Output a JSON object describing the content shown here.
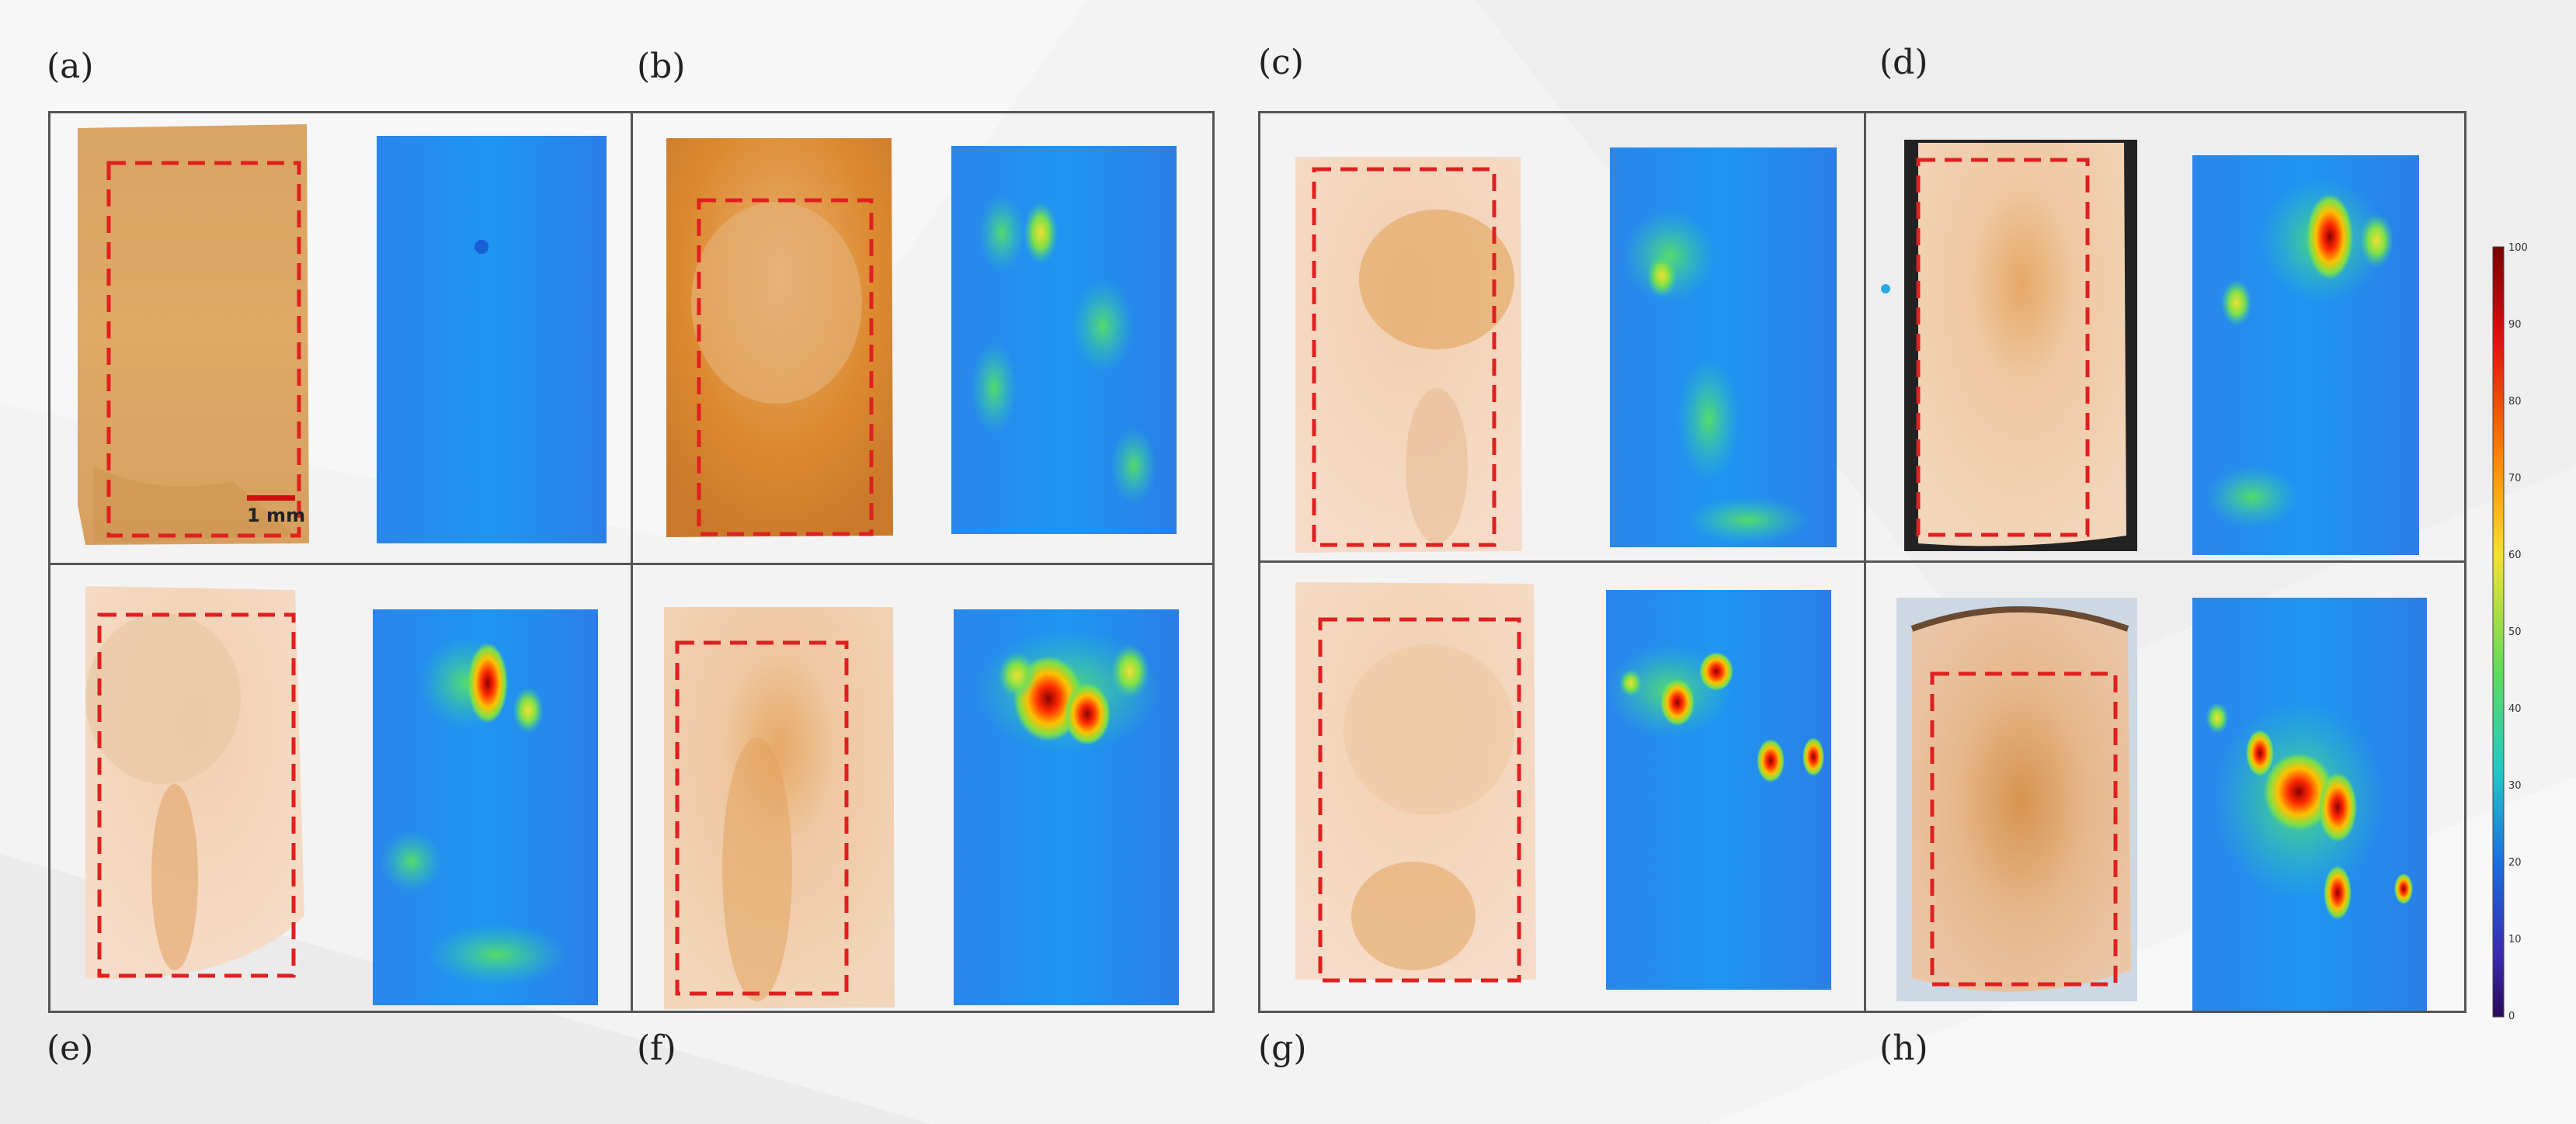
{
  "panels": {
    "a": {
      "label": "(a)"
    },
    "b": {
      "label": "(b)"
    },
    "c": {
      "label": "(c)"
    },
    "d": {
      "label": "(d)"
    },
    "e": {
      "label": "(e)"
    },
    "f": {
      "label": "(f)"
    },
    "g": {
      "label": "(g)"
    },
    "h": {
      "label": "(h)"
    }
  },
  "scale_bar": {
    "text": "1 mm"
  },
  "colorbar": {
    "ticks": [
      "100",
      "90",
      "80",
      "70",
      "60",
      "50",
      "40",
      "30",
      "20",
      "10",
      "0"
    ],
    "colors": {
      "top": "#7a0000",
      "hot": "#ff3000",
      "warm": "#ffa000",
      "mid": "#c8e83a",
      "cool": "#3ad0a0",
      "cold": "#1a6fe0",
      "bottom": "#2a0a5a"
    }
  },
  "colors": {
    "frame": "#555555",
    "dashed_box": "#e02020",
    "tissue_light": "#f0c9a8",
    "tissue_dark": "#d9913f",
    "heat_base": "#1e90ff"
  }
}
